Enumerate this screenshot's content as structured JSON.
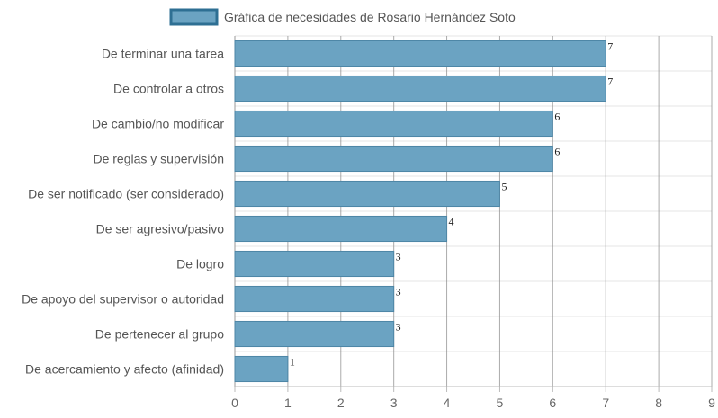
{
  "chart_data": {
    "type": "bar",
    "orientation": "horizontal",
    "categories": [
      "De terminar una tarea",
      "De controlar a otros",
      "De cambio/no modificar",
      "De reglas y supervisión",
      "De ser notificado (ser considerado)",
      "De ser agresivo/pasivo",
      "De logro",
      "De apoyo del supervisor o autoridad",
      "De pertenecer al grupo",
      "De acercamiento y afecto (afinidad)"
    ],
    "series": [
      {
        "name": "Gráfica de necesidades de Rosario Hernández Soto",
        "values": [
          7,
          7,
          6,
          6,
          5,
          4,
          3,
          3,
          3,
          1
        ]
      }
    ],
    "xlim": [
      0,
      9
    ],
    "xticks": [
      0,
      1,
      2,
      3,
      4,
      5,
      6,
      7,
      8,
      9
    ],
    "data_labels": true,
    "grid": true,
    "legend_position": "top",
    "colors": {
      "bar_fill": "#6ba3c2",
      "bar_stroke": "#4e86a6",
      "legend_stroke": "#2e6f93",
      "grid": "#cccccc",
      "grid_strong": "#888888"
    }
  }
}
